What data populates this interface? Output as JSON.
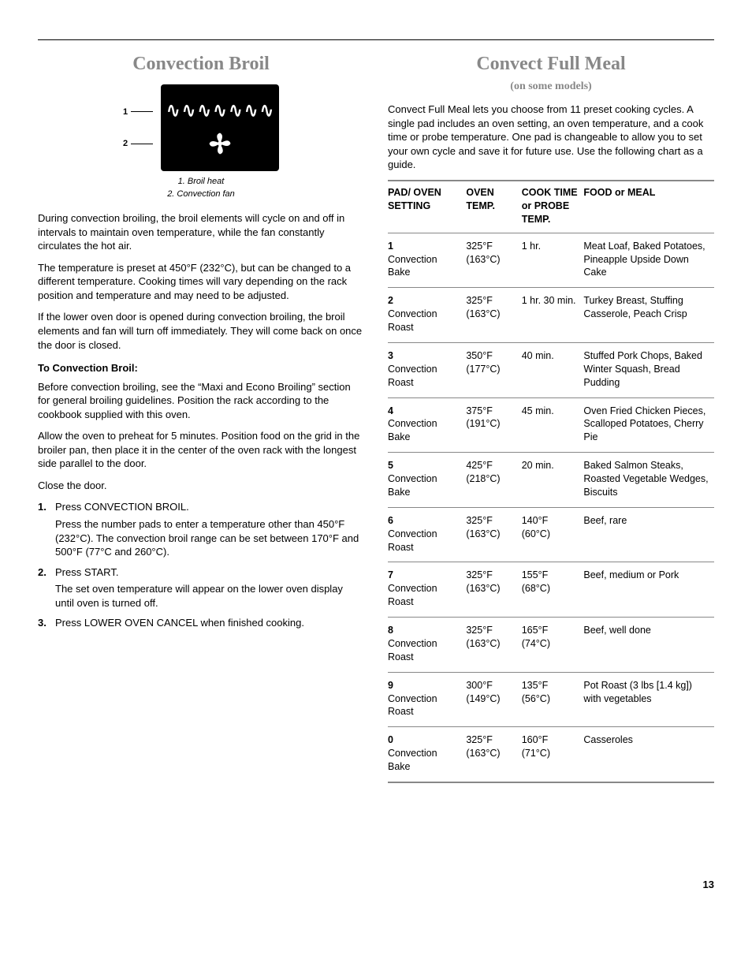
{
  "left": {
    "title": "Convection Broil",
    "diagram": {
      "label1_num": "1",
      "label2_num": "2",
      "caption_line1": "1. Broil heat",
      "caption_line2": "2. Convection fan"
    },
    "p1": "During convection broiling, the broil elements will cycle on and off in intervals to maintain oven temperature, while the fan constantly circulates the hot air.",
    "p2": "The temperature is preset at 450°F (232°C), but can be changed to a different temperature. Cooking times will vary depending on the rack position and temperature and may need to be adjusted.",
    "p3": "If the lower oven door is opened during convection broiling, the broil elements and fan will turn off immediately. They will come back on once the door is closed.",
    "subhead": "To Convection Broil:",
    "p4": "Before convection broiling, see the “Maxi and Econo Broiling” section for general broiling guidelines. Position the rack according to the cookbook supplied with this oven.",
    "p5": "Allow the oven to preheat for 5 minutes. Position food on the grid in the broiler pan, then place it in the center of the oven rack with the longest side parallel to the door.",
    "p6": "Close the door.",
    "steps": [
      {
        "main": "Press CONVECTION BROIL.",
        "sub": "Press the number pads to enter a temperature other than 450°F (232°C). The convection broil range can be set between 170°F and 500°F (77°C and 260°C)."
      },
      {
        "main": "Press START.",
        "sub": "The set oven temperature will appear on the lower oven display until oven is turned off."
      },
      {
        "main": "Press LOWER OVEN CANCEL when finished cooking.",
        "sub": ""
      }
    ]
  },
  "right": {
    "title": "Convect Full Meal",
    "subtitle": "(on some models)",
    "intro": "Convect Full Meal lets you choose from 11 preset cooking cycles. A single pad includes an oven setting, an oven temperature, and a cook time or probe temperature. One pad is changeable to allow you to set your own cycle and save it for future use. Use the following chart as a guide.",
    "headers": {
      "c1": "PAD/ OVEN SETTING",
      "c2": "OVEN TEMP.",
      "c3": "COOK TIME or PROBE TEMP.",
      "c4": "FOOD or MEAL"
    },
    "rows": [
      {
        "num": "1",
        "setting": "Convection Bake",
        "temp": "325°F (163°C)",
        "time": "1 hr.",
        "food": "Meat Loaf, Baked Potatoes, Pineapple Upside Down Cake"
      },
      {
        "num": "2",
        "setting": "Convection Roast",
        "temp": "325°F (163°C)",
        "time": "1 hr. 30 min.",
        "food": "Turkey Breast, Stuffing Casserole, Peach Crisp"
      },
      {
        "num": "3",
        "setting": "Convection Roast",
        "temp": "350°F (177°C)",
        "time": "40 min.",
        "food": "Stuffed Pork Chops, Baked Winter Squash, Bread Pudding"
      },
      {
        "num": "4",
        "setting": "Convection Bake",
        "temp": "375°F (191°C)",
        "time": "45 min.",
        "food": "Oven Fried Chicken Pieces, Scalloped Potatoes, Cherry Pie"
      },
      {
        "num": "5",
        "setting": "Convection Bake",
        "temp": "425°F (218°C)",
        "time": "20 min.",
        "food": "Baked Salmon Steaks, Roasted Vegetable Wedges, Biscuits"
      },
      {
        "num": "6",
        "setting": "Convection Roast",
        "temp": "325°F (163°C)",
        "time": "140°F (60°C)",
        "food": "Beef, rare"
      },
      {
        "num": "7",
        "setting": "Convection Roast",
        "temp": "325°F (163°C)",
        "time": "155°F (68°C)",
        "food": "Beef, medium or Pork"
      },
      {
        "num": "8",
        "setting": "Convection Roast",
        "temp": "325°F (163°C)",
        "time": "165°F (74°C)",
        "food": "Beef, well done"
      },
      {
        "num": "9",
        "setting": "Convection Roast",
        "temp": "300°F (149°C)",
        "time": "135°F (56°C)",
        "food": "Pot Roast (3 lbs [1.4 kg]) with vegetables"
      },
      {
        "num": "0",
        "setting": "Convection Bake",
        "temp": "325°F (163°C)",
        "time": "160°F (71°C)",
        "food": "Casseroles"
      }
    ]
  },
  "page_number": "13"
}
